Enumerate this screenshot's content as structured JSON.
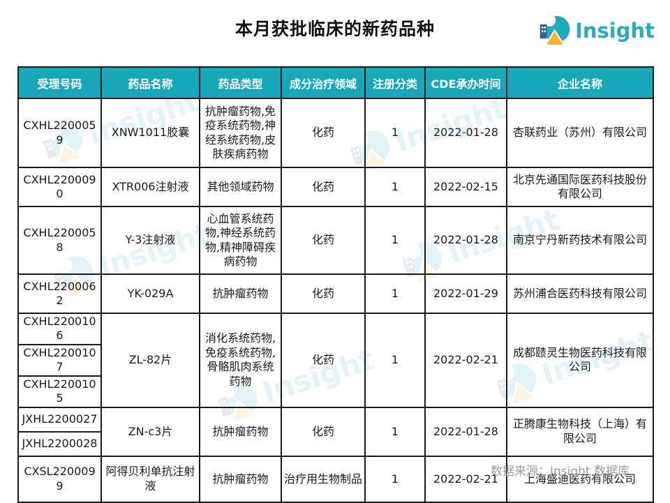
{
  "title": "本月获批临床的新药品种",
  "brand": {
    "name": "Insight"
  },
  "footer": {
    "source": "数据来源：Insight 数据库"
  },
  "colors": {
    "header_bg": "#18a8b9",
    "brand_teal": "#2bacbe",
    "brand_yellow": "#f6b52c",
    "brand_navy": "#2e5e8e",
    "border": "#1b1b1b",
    "footer_gray": "#9c9c9c"
  },
  "table": {
    "headers": [
      "受理号码",
      "药品名称",
      "药品类型",
      "成分治疗领域",
      "注册分类",
      "CDE承办时间",
      "企业名称"
    ],
    "groups": [
      {
        "numbers": [
          "CXHL2200059"
        ],
        "drug_name": "XNW1011胶囊",
        "drug_type": "抗肿瘤药物,免疫系统药物,神经系统药物,皮肤疾病药物",
        "treatment_area": "化药",
        "reg_class": "1",
        "cde_date": "2022-01-28",
        "company": "杏联药业（苏州）有限公司"
      },
      {
        "numbers": [
          "CXHL2200090"
        ],
        "drug_name": "XTR006注射液",
        "drug_type": "其他领域药物",
        "treatment_area": "化药",
        "reg_class": "1",
        "cde_date": "2022-02-15",
        "company": "北京先通国际医药科技股份有限公司"
      },
      {
        "numbers": [
          "CXHL2200058"
        ],
        "drug_name": "Y-3注射液",
        "drug_type": "心血管系统药物,神经系统药物,精神障碍疾病药物",
        "treatment_area": "化药",
        "reg_class": "1",
        "cde_date": "2022-01-28",
        "company": "南京宁丹新药技术有限公司"
      },
      {
        "numbers": [
          "CXHL2200062"
        ],
        "drug_name": "YK-029A",
        "drug_type": "抗肿瘤药物",
        "treatment_area": "化药",
        "reg_class": "1",
        "cde_date": "2022-01-29",
        "company": "苏州浦合医药科技有限公司"
      },
      {
        "numbers": [
          "CXHL2200106",
          "CXHL2200107",
          "CXHL2200105"
        ],
        "drug_name": "ZL-82片",
        "drug_type": "消化系统药物,免疫系统药物,骨骼肌肉系统药物",
        "treatment_area": "化药",
        "reg_class": "1",
        "cde_date": "2022-02-21",
        "company": "成都赜灵生物医药科技有限公司"
      },
      {
        "numbers": [
          "JXHL2200027",
          "JXHL2200028"
        ],
        "drug_name": "ZN-c3片",
        "drug_type": "抗肿瘤药物",
        "treatment_area": "化药",
        "reg_class": "1",
        "cde_date": "2022-01-28",
        "company": "正腾康生物科技（上海）有限公司"
      },
      {
        "numbers": [
          "CXSL2200099"
        ],
        "drug_name": "阿得贝利单抗注射液",
        "drug_type": "抗肿瘤药物",
        "treatment_area": "治疗用生物制品",
        "reg_class": "1",
        "cde_date": "2022-02-21",
        "company": "上海盛迪医药有限公司"
      }
    ]
  }
}
